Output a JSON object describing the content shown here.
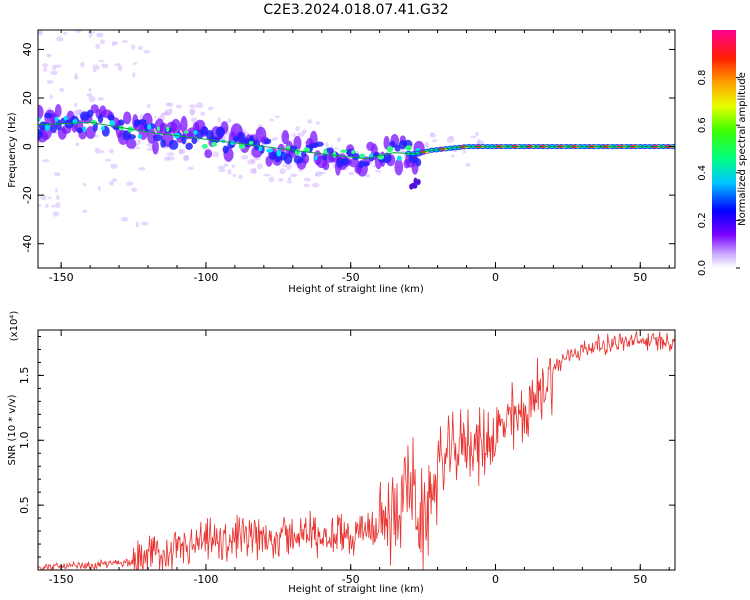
{
  "title": "C2E3.2024.018.07.41.G32",
  "chart_data": [
    {
      "type": "heatmap",
      "xlabel": "Height of straight line (km)",
      "ylabel": "Frequency (Hz)",
      "xlim": [
        -158,
        62
      ],
      "ylim": [
        -50,
        48
      ],
      "xticks": [
        -150,
        -100,
        -50,
        0,
        50
      ],
      "yticks": [
        40,
        20,
        0,
        -20,
        -40
      ],
      "ridge": {
        "x": [
          -158,
          -140,
          -120,
          -100,
          -80,
          -60,
          -45,
          -35,
          -28,
          -22,
          -10,
          0,
          20,
          40,
          62
        ],
        "y": [
          9,
          10,
          6,
          3,
          0,
          -3,
          -5,
          -2.5,
          -3,
          -1.5,
          0,
          0,
          0,
          0,
          0
        ]
      },
      "colorbar": {
        "label": "Normalized spectral amplitude",
        "range": [
          0,
          1
        ],
        "ticks": [
          "0.0",
          "0.2",
          "0.4",
          "0.6",
          "0.8"
        ]
      }
    },
    {
      "type": "line",
      "xlabel": "Height of straight line (km)",
      "ylabel": "SNR (10 * v/v)",
      "multiplier": "(x10⁴)",
      "xlim": [
        -158,
        62
      ],
      "ylim": [
        0,
        1.85
      ],
      "xticks": [
        -150,
        -100,
        -50,
        0,
        50
      ],
      "yticks": [
        "0.5",
        "1.0",
        "1.5"
      ],
      "series": [
        {
          "color": "#e8322f",
          "x": [
            -158,
            -140,
            -125,
            -110,
            -100,
            -90,
            -80,
            -70,
            -60,
            -50,
            -40,
            -36,
            -33,
            -30,
            -27,
            -25,
            -22,
            -20,
            -15,
            -10,
            -5,
            0,
            5,
            10,
            13,
            15,
            20,
            25,
            30,
            40,
            50,
            62
          ],
          "y": [
            0.02,
            0.03,
            0.07,
            0.15,
            0.2,
            0.23,
            0.25,
            0.27,
            0.28,
            0.28,
            0.3,
            0.4,
            0.55,
            0.7,
            0.45,
            0.3,
            0.6,
            0.8,
            0.9,
            1.0,
            0.95,
            1.05,
            1.15,
            1.2,
            1.3,
            1.35,
            1.55,
            1.65,
            1.7,
            1.75,
            1.76,
            1.77
          ]
        }
      ]
    }
  ]
}
